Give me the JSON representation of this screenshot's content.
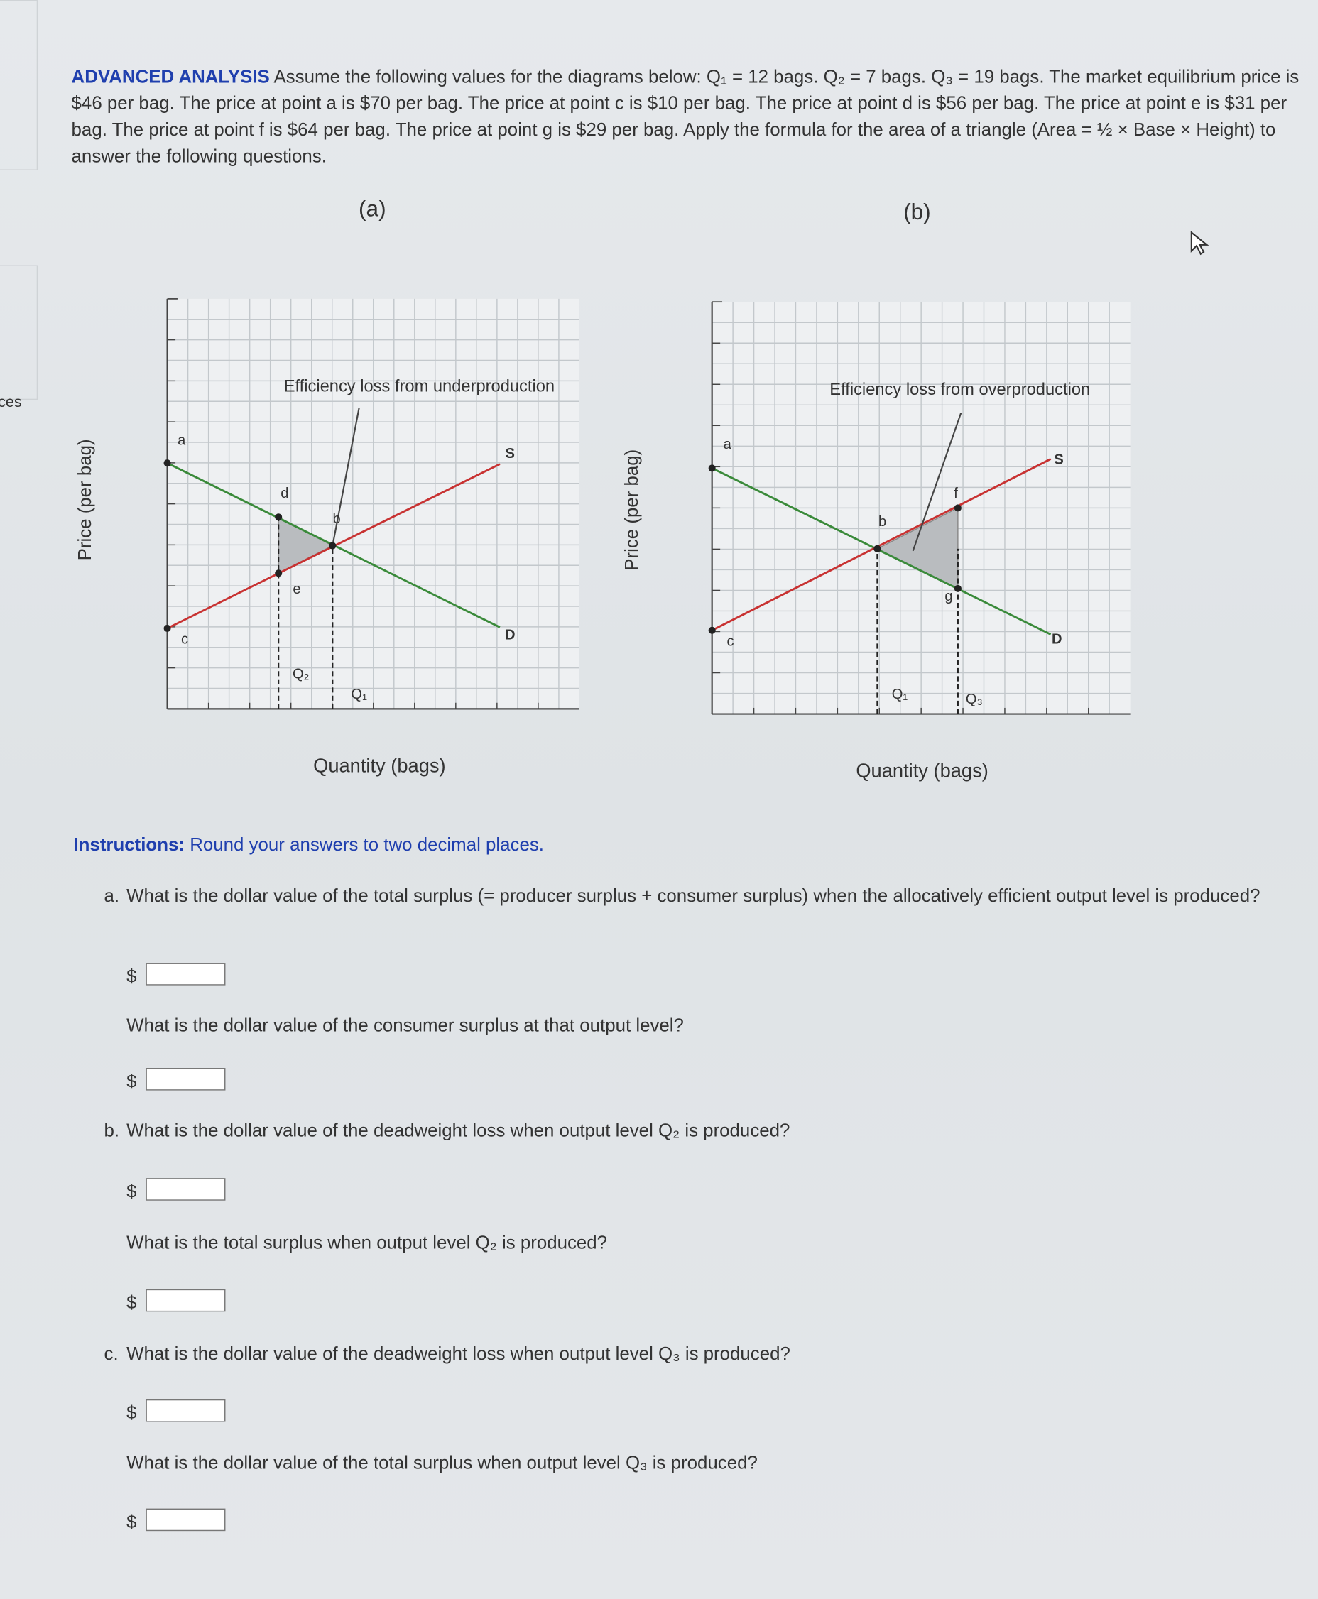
{
  "sidebar_fragment": "ces",
  "problem": {
    "label": "ADVANCED ANALYSIS",
    "text": "Assume the following values for the diagrams below: Q₁ = 12 bags. Q₂ = 7 bags. Q₃ = 19 bags. The market equilibrium price is $46 per bag. The price at point a is $70 per bag. The price at point c is $10 per bag. The price at point d is $56 per bag. The price at point e is $31 per bag. The price at point f is $64 per bag. The price at point g is $29 per bag. Apply the formula for the area of a triangle (Area = ½ × Base × Height) to answer the following questions."
  },
  "diagrams": [
    {
      "caption": "(a)",
      "title": "Efficiency loss from underproduction",
      "y_label": "Price (per bag)",
      "x_label": "Quantity (bags)",
      "point_labels": [
        "a",
        "d",
        "b",
        "e",
        "c",
        "S",
        "D",
        "Q₂",
        "Q₁"
      ]
    },
    {
      "caption": "(b)",
      "title": "Efficiency loss from overproduction",
      "y_label": "Price (per bag)",
      "x_label": "Quantity (bags)",
      "point_labels": [
        "a",
        "b",
        "f",
        "g",
        "c",
        "S",
        "D",
        "Q₁",
        "Q₃"
      ]
    }
  ],
  "instructions": {
    "label": "Instructions:",
    "text": "Round your answers to two decimal places."
  },
  "questions": [
    {
      "marker": "a.",
      "prompt": "What is the dollar value of the total surplus (= producer surplus + consumer surplus) when the allocatively efficient output level is produced?",
      "currency": "$"
    },
    {
      "prompt": "What is the dollar value of the consumer surplus at that output level?",
      "currency": "$"
    },
    {
      "marker": "b.",
      "prompt": "What is the dollar value of the deadweight loss when output level Q₂ is produced?",
      "currency": "$"
    },
    {
      "prompt": "What is the total surplus when output level Q₂ is produced?",
      "currency": "$"
    },
    {
      "marker": "c.",
      "prompt": "What is the dollar value of the deadweight loss when output level Q₃ is produced?",
      "currency": "$"
    },
    {
      "prompt": "What is the dollar value of the total surplus when output level Q₃ is produced?",
      "currency": "$"
    }
  ]
}
